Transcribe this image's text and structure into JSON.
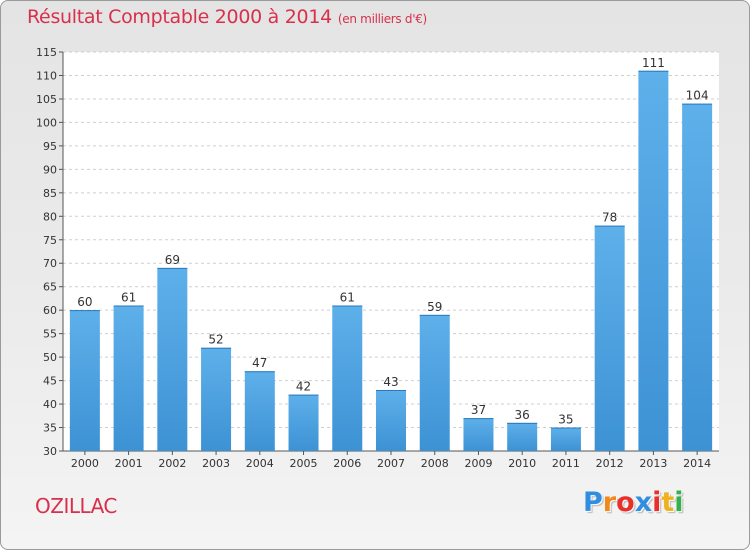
{
  "chart_data": {
    "type": "bar",
    "title": "Résultat Comptable 2000 à 2014",
    "subtitle": "(en milliers d'€)",
    "categories": [
      "2000",
      "2001",
      "2002",
      "2003",
      "2004",
      "2005",
      "2006",
      "2007",
      "2008",
      "2009",
      "2010",
      "2011",
      "2012",
      "2013",
      "2014"
    ],
    "values": [
      60,
      61,
      69,
      52,
      47,
      42,
      61,
      43,
      59,
      37,
      36,
      35,
      78,
      111,
      104
    ],
    "ylim": [
      30,
      115
    ],
    "yticks": [
      30,
      35,
      40,
      45,
      50,
      55,
      60,
      65,
      70,
      75,
      80,
      85,
      90,
      95,
      100,
      105,
      110,
      115
    ],
    "xlabel": "",
    "ylabel": "",
    "grid": true,
    "bar_color": "#3d92d4"
  },
  "commune": "OZILLAC",
  "brand": {
    "letters": [
      "P",
      "r",
      "o",
      "x",
      "i",
      "t",
      "i"
    ],
    "colors": [
      "#2f8ee0",
      "#f08a1c",
      "#e8302a",
      "#2f8ee0",
      "#e8302a",
      "#f0b21c",
      "#34b14a"
    ]
  }
}
